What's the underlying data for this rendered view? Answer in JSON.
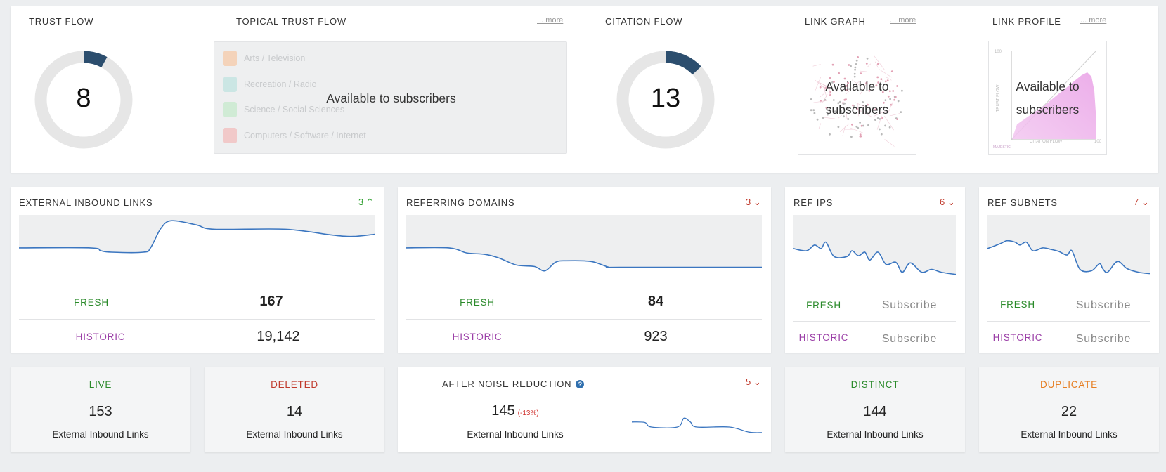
{
  "top": {
    "trust_flow": {
      "label": "TRUST FLOW",
      "value": "8",
      "ratio": 0.08
    },
    "topical_trust_flow": {
      "label": "TOPICAL TRUST FLOW",
      "more": "... more",
      "items": [
        {
          "label": "Arts / Television",
          "color": "#f6c9a8"
        },
        {
          "label": "Recreation / Radio",
          "color": "#bfe3e0"
        },
        {
          "label": "Science / Social Sciences",
          "color": "#c5e9cc"
        },
        {
          "label": "Computers / Software / Internet",
          "color": "#f1bcbc"
        }
      ],
      "overlay": "Available to subscribers"
    },
    "citation_flow": {
      "label": "CITATION FLOW",
      "value": "13",
      "ratio": 0.13
    },
    "link_graph": {
      "label": "LINK GRAPH",
      "more": "... more",
      "overlay_line1": "Available to",
      "overlay_line2": "subscribers"
    },
    "link_profile": {
      "label": "LINK PROFILE",
      "more": "... more",
      "overlay_line1": "Available to",
      "overlay_line2": "subscribers",
      "axis_x": "CITATION FLOW",
      "axis_y": "TRUST FLOW",
      "tick": "100",
      "brand": "MAJESTIC"
    }
  },
  "metrics": [
    {
      "label": "EXTERNAL INBOUND LINKS",
      "trend": "3",
      "trend_dir": "up",
      "fresh_label": "FRESH",
      "fresh_value": "167",
      "historic_label": "HISTORIC",
      "historic_value": "19,142"
    },
    {
      "label": "REFERRING DOMAINS",
      "trend": "3",
      "trend_dir": "down",
      "fresh_label": "FRESH",
      "fresh_value": "84",
      "historic_label": "HISTORIC",
      "historic_value": "923"
    },
    {
      "label": "REF IPS",
      "trend": "6",
      "trend_dir": "down",
      "fresh_label": "FRESH",
      "fresh_value": "Subscribe",
      "historic_label": "HISTORIC",
      "historic_value": "Subscribe"
    },
    {
      "label": "REF SUBNETS",
      "trend": "7",
      "trend_dir": "down",
      "fresh_label": "FRESH",
      "fresh_value": "Subscribe",
      "historic_label": "HISTORIC",
      "historic_value": "Subscribe"
    }
  ],
  "bottom": {
    "live": {
      "label": "LIVE",
      "value": "153",
      "sub": "External Inbound Links",
      "color": "#2a8a2a"
    },
    "deleted": {
      "label": "DELETED",
      "value": "14",
      "sub": "External Inbound Links",
      "color": "#c0392b"
    },
    "noise": {
      "label": "AFTER NOISE REDUCTION",
      "help": "?",
      "trend": "5",
      "value": "145",
      "pct": "(-13%)",
      "sub": "External Inbound Links"
    },
    "distinct": {
      "label": "DISTINCT",
      "value": "144",
      "sub": "External Inbound Links",
      "color": "#2a8a2a"
    },
    "duplicate": {
      "label": "DUPLICATE",
      "value": "22",
      "sub": "External Inbound Links",
      "color": "#e67e22"
    }
  },
  "colors": {
    "donut_fill": "#2c4e6e",
    "donut_track": "#e6e6e6",
    "line": "#3b76c0"
  }
}
